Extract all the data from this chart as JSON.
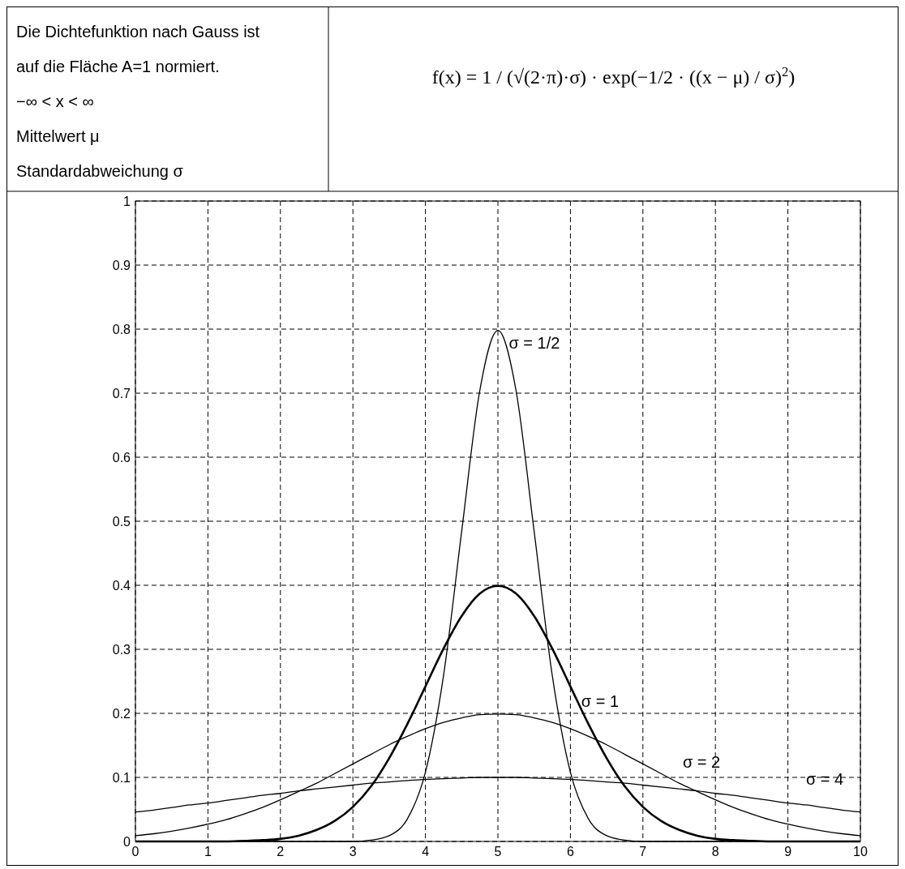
{
  "chart_data": {
    "type": "line",
    "annotations": [
      "Die Dichtefunktion nach Gauss ist auf die Fläche A=1 normiert.",
      "−∞ < x < ∞",
      "Mittelwert μ",
      "Standardabweichung σ",
      "f(x) = 1 / (√(2·π)·σ) · exp(−1/2 · ((x − μ) / σ)$^{2}$)"
    ],
    "x": [
      0,
      0.25,
      0.5,
      0.75,
      1,
      1.25,
      1.5,
      1.75,
      2,
      2.25,
      2.5,
      2.75,
      3,
      3.25,
      3.5,
      3.75,
      4,
      4.25,
      4.5,
      4.75,
      5,
      5.25,
      5.5,
      5.75,
      6,
      6.25,
      6.5,
      6.75,
      7,
      7.25,
      7.5,
      7.75,
      8,
      8.25,
      8.5,
      8.75,
      9,
      9.25,
      9.5,
      9.75,
      10
    ],
    "series": [
      {
        "name": "σ = 1/2",
        "color": "#000000",
        "values": [
          0,
          0,
          0,
          0,
          0,
          0,
          0,
          0,
          0,
          0,
          0,
          0,
          0,
          0.002,
          0.009,
          0.035,
          0.108,
          0.259,
          0.484,
          0.704,
          0.798,
          0.704,
          0.484,
          0.259,
          0.108,
          0.035,
          0.009,
          0.002,
          0,
          0,
          0,
          0,
          0,
          0,
          0,
          0,
          0,
          0,
          0,
          0,
          0
        ]
      },
      {
        "name": "σ = 1",
        "color": "#000000",
        "values": [
          0,
          0,
          0,
          0,
          0,
          0,
          0.001,
          0.002,
          0.004,
          0.009,
          0.018,
          0.032,
          0.054,
          0.086,
          0.13,
          0.183,
          0.242,
          0.301,
          0.352,
          0.387,
          0.399,
          0.387,
          0.352,
          0.301,
          0.242,
          0.183,
          0.13,
          0.086,
          0.054,
          0.032,
          0.018,
          0.009,
          0.004,
          0.002,
          0.001,
          0,
          0,
          0,
          0,
          0,
          0
        ]
      },
      {
        "name": "σ = 2",
        "color": "#000000",
        "values": [
          0.009,
          0.012,
          0.016,
          0.021,
          0.027,
          0.034,
          0.043,
          0.053,
          0.065,
          0.078,
          0.091,
          0.106,
          0.121,
          0.136,
          0.151,
          0.164,
          0.176,
          0.186,
          0.193,
          0.198,
          0.199,
          0.198,
          0.193,
          0.186,
          0.176,
          0.164,
          0.151,
          0.136,
          0.121,
          0.106,
          0.091,
          0.078,
          0.065,
          0.053,
          0.043,
          0.034,
          0.027,
          0.021,
          0.016,
          0.012,
          0.009
        ]
      },
      {
        "name": "σ = 4",
        "color": "#000000",
        "values": [
          0.046,
          0.049,
          0.053,
          0.057,
          0.06,
          0.064,
          0.068,
          0.072,
          0.075,
          0.079,
          0.082,
          0.085,
          0.088,
          0.091,
          0.093,
          0.095,
          0.097,
          0.098,
          0.099,
          0.1,
          0.1,
          0.1,
          0.099,
          0.098,
          0.097,
          0.095,
          0.093,
          0.091,
          0.088,
          0.085,
          0.082,
          0.079,
          0.075,
          0.072,
          0.068,
          0.064,
          0.06,
          0.057,
          0.053,
          0.049,
          0.046
        ]
      }
    ],
    "xlim": [
      0,
      10
    ],
    "xticks": [
      0,
      1,
      2,
      3,
      4,
      5,
      6,
      7,
      8,
      9,
      10
    ],
    "ylim": [
      0,
      1
    ],
    "yticks": [
      0,
      0.1,
      0.2,
      0.3,
      0.4,
      0.5,
      0.6,
      0.7,
      0.8,
      0.9,
      1
    ],
    "grid": true,
    "line_style": "solid",
    "marker": "none"
  }
}
